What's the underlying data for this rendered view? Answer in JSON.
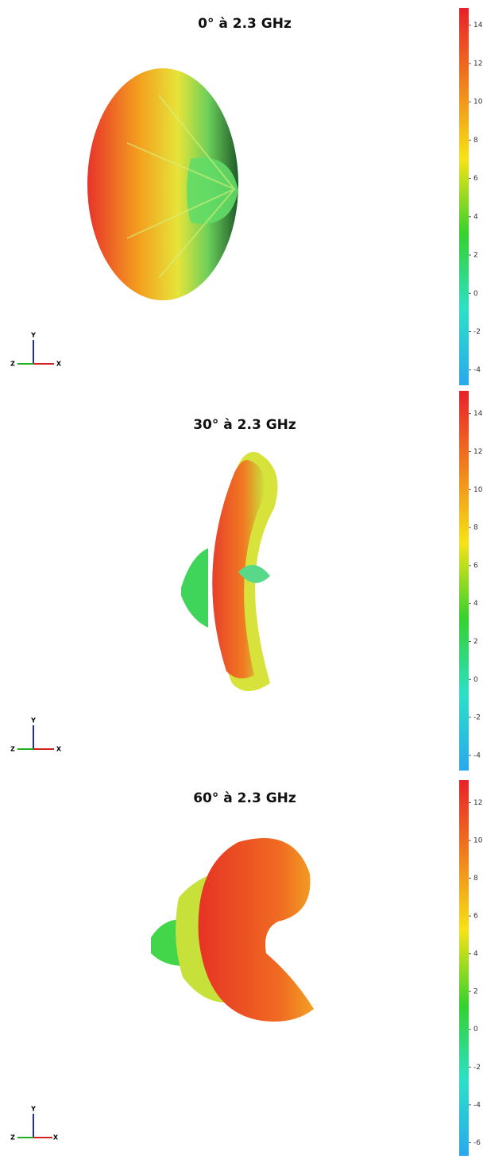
{
  "chart_data": [
    {
      "type": "radiation-pattern",
      "title": "0° à 2.3 GHz",
      "ylim": [
        -4.8,
        14.9
      ],
      "yticks": [
        14,
        12,
        10,
        8,
        6,
        4,
        2,
        0,
        -2,
        -4
      ],
      "colors": [
        "#e8202a",
        "#f07f1d",
        "#f6e317",
        "#35d12e",
        "#2ce0c8",
        "#2aa8ee"
      ],
      "axis_labels": {
        "y": "Y",
        "z": "Z",
        "x": "X"
      }
    },
    {
      "type": "radiation-pattern",
      "title": "30° à 2.3 GHz",
      "ylim": [
        -4.8,
        15.2
      ],
      "yticks": [
        14,
        12,
        10,
        8,
        6,
        4,
        2,
        0,
        -2,
        -4
      ],
      "colors": [
        "#e8202a",
        "#f07f1d",
        "#f6e317",
        "#35d12e",
        "#2ce0c8",
        "#2aa8ee"
      ],
      "axis_labels": {
        "y": "Y",
        "z": "Z",
        "x": "X"
      }
    },
    {
      "type": "radiation-pattern",
      "title": "60° à 2.3 GHz",
      "ylim": [
        -6.7,
        13.2
      ],
      "yticks": [
        12,
        10,
        8,
        6,
        4,
        2,
        0,
        -2,
        -4,
        -6
      ],
      "colors": [
        "#e8202a",
        "#f07f1d",
        "#f6e317",
        "#35d12e",
        "#2ce0c8",
        "#2aa8ee"
      ],
      "axis_labels": {
        "y": "Y",
        "z": "Z",
        "x": "X"
      }
    }
  ]
}
